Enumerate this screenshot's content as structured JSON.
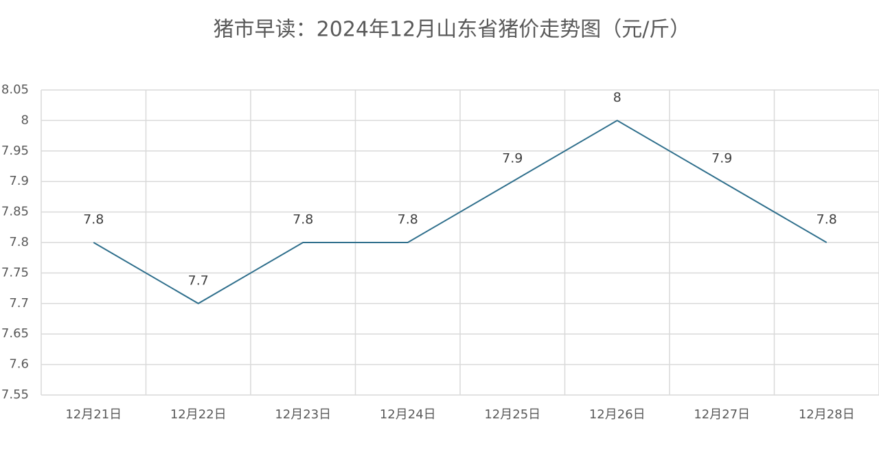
{
  "chart_data": {
    "type": "line",
    "title": "猪市早读：2024年12月山东省猪价走势图（元/斤）",
    "categories": [
      "12月21日",
      "12月22日",
      "12月23日",
      "12月24日",
      "12月25日",
      "12月26日",
      "12月27日",
      "12月28日"
    ],
    "values": [
      7.8,
      7.7,
      7.8,
      7.8,
      7.9,
      8,
      7.9,
      7.8
    ],
    "color": "#2f6f8c",
    "ylim": [
      7.55,
      8.05
    ],
    "yticks": [
      7.55,
      7.6,
      7.65,
      7.7,
      7.75,
      7.8,
      7.85,
      7.9,
      7.95,
      8,
      8.05
    ],
    "grid": true
  }
}
